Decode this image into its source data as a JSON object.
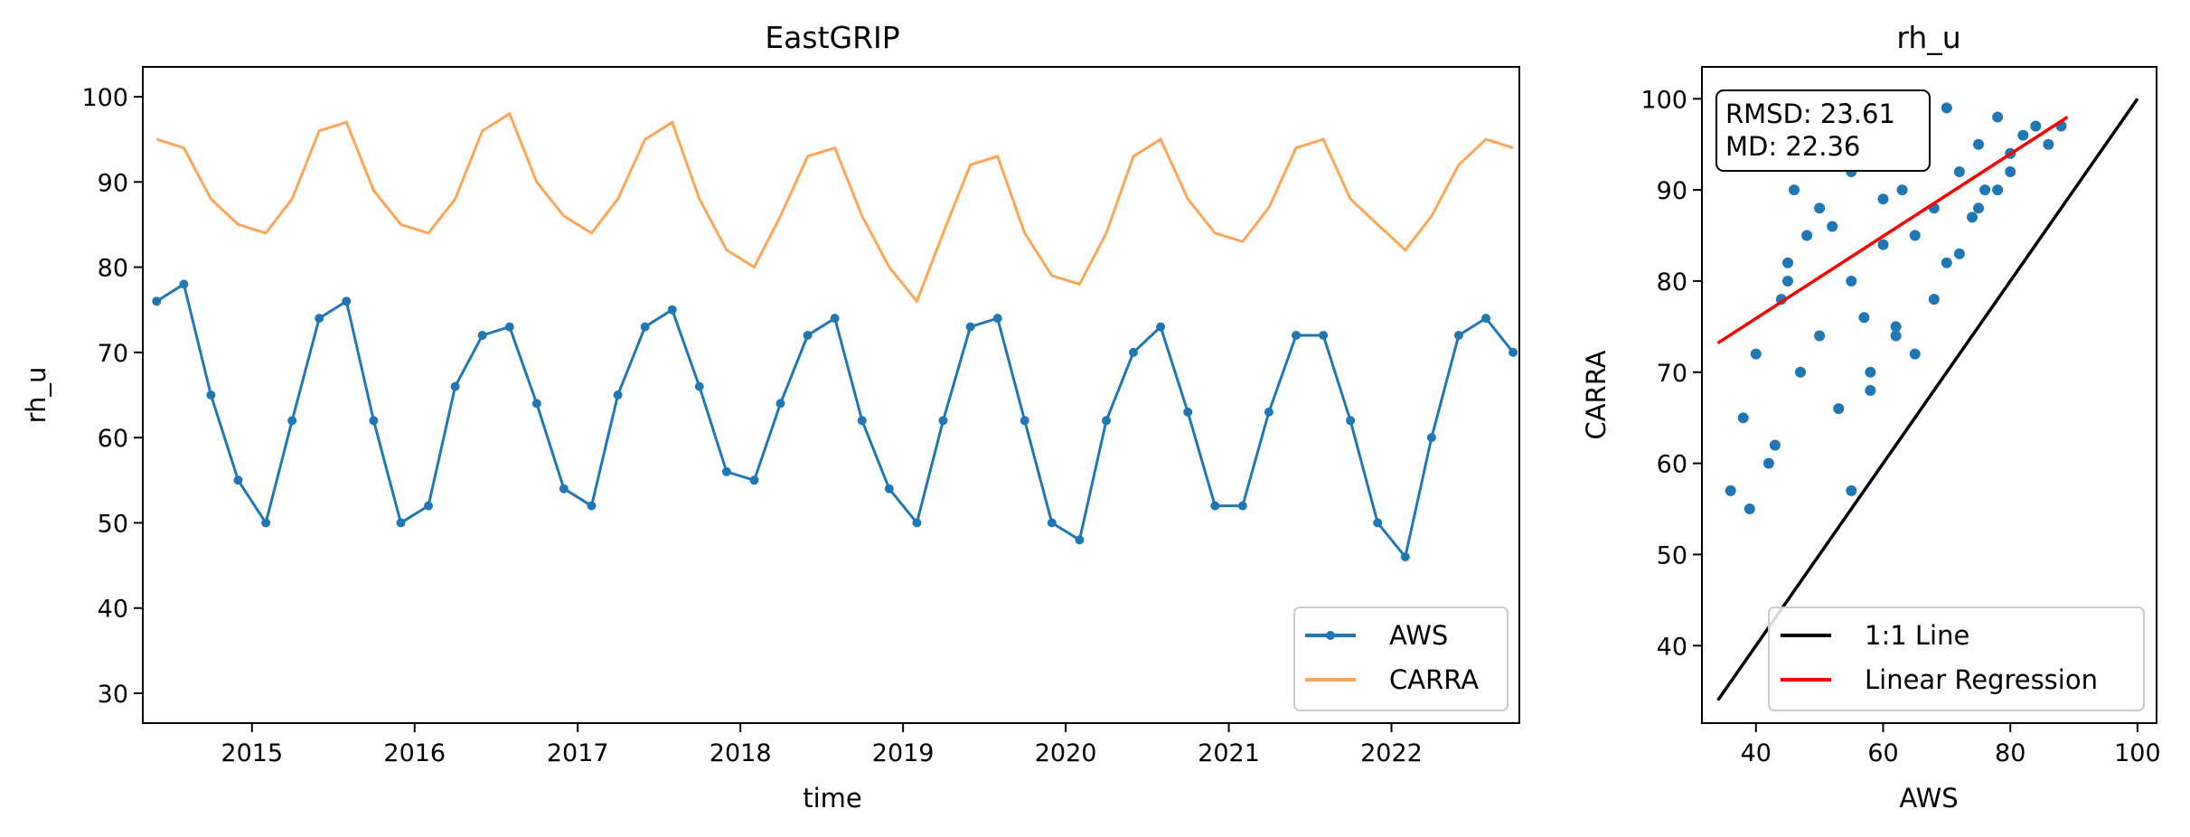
{
  "chart_data": [
    {
      "type": "line",
      "title": "EastGRIP",
      "xlabel": "time",
      "ylabel": "rh_u",
      "xlim": [
        "2014-05-01",
        "2022-10-15"
      ],
      "ylim": [
        26.5,
        103.5
      ],
      "x_ticks": [
        "2015",
        "2016",
        "2017",
        "2018",
        "2019",
        "2020",
        "2021",
        "2022"
      ],
      "y_ticks": [
        30,
        40,
        50,
        60,
        70,
        80,
        90,
        100
      ],
      "grid": false,
      "legend_position": "lower right",
      "series": [
        {
          "name": "AWS",
          "color": "#1f77b4",
          "marker": "circle",
          "x": [
            "2014-06-01",
            "2014-08-01",
            "2014-10-01",
            "2014-12-01",
            "2015-02-01",
            "2015-04-01",
            "2015-06-01",
            "2015-08-01",
            "2015-10-01",
            "2015-12-01",
            "2016-02-01",
            "2016-04-01",
            "2016-06-01",
            "2016-08-01",
            "2016-10-01",
            "2016-12-01",
            "2017-02-01",
            "2017-04-01",
            "2017-06-01",
            "2017-08-01",
            "2017-10-01",
            "2017-12-01",
            "2018-02-01",
            "2018-04-01",
            "2018-06-01",
            "2018-08-01",
            "2018-10-01",
            "2018-12-01",
            "2019-02-01",
            "2019-04-01",
            "2019-06-01",
            "2019-08-01",
            "2019-10-01",
            "2019-12-01",
            "2020-02-01",
            "2020-04-01",
            "2020-06-01",
            "2020-08-01",
            "2020-10-01",
            "2020-12-01",
            "2021-02-01",
            "2021-04-01",
            "2021-06-01",
            "2021-08-01",
            "2021-10-01",
            "2021-12-01",
            "2022-02-01",
            "2022-04-01",
            "2022-06-01",
            "2022-08-01",
            "2022-10-01"
          ],
          "values": [
            76,
            78,
            65,
            55,
            50,
            62,
            74,
            76,
            62,
            50,
            52,
            66,
            72,
            73,
            64,
            54,
            52,
            65,
            73,
            75,
            66,
            56,
            55,
            64,
            72,
            74,
            62,
            54,
            50,
            62,
            73,
            74,
            62,
            50,
            48,
            62,
            70,
            73,
            63,
            52,
            52,
            63,
            72,
            72,
            62,
            50,
            46,
            60,
            72,
            74,
            70
          ]
        },
        {
          "name": "CARRA",
          "color": "#ffa556",
          "x": [
            "2014-06-01",
            "2014-08-01",
            "2014-10-01",
            "2014-12-01",
            "2015-02-01",
            "2015-04-01",
            "2015-06-01",
            "2015-08-01",
            "2015-10-01",
            "2015-12-01",
            "2016-02-01",
            "2016-04-01",
            "2016-06-01",
            "2016-08-01",
            "2016-10-01",
            "2016-12-01",
            "2017-02-01",
            "2017-04-01",
            "2017-06-01",
            "2017-08-01",
            "2017-10-01",
            "2017-12-01",
            "2018-02-01",
            "2018-04-01",
            "2018-06-01",
            "2018-08-01",
            "2018-10-01",
            "2018-12-01",
            "2019-02-01",
            "2019-04-01",
            "2019-06-01",
            "2019-08-01",
            "2019-10-01",
            "2019-12-01",
            "2020-02-01",
            "2020-04-01",
            "2020-06-01",
            "2020-08-01",
            "2020-10-01",
            "2020-12-01",
            "2021-02-01",
            "2021-04-01",
            "2021-06-01",
            "2021-08-01",
            "2021-10-01",
            "2021-12-01",
            "2022-02-01",
            "2022-04-01",
            "2022-06-01",
            "2022-08-01",
            "2022-10-01"
          ],
          "values": [
            95,
            94,
            88,
            85,
            84,
            88,
            96,
            97,
            89,
            85,
            84,
            88,
            96,
            98,
            90,
            86,
            84,
            88,
            95,
            97,
            88,
            82,
            80,
            86,
            93,
            94,
            86,
            80,
            76,
            84,
            92,
            93,
            84,
            79,
            78,
            84,
            93,
            95,
            88,
            84,
            83,
            87,
            94,
            95,
            88,
            85,
            82,
            86,
            92,
            95,
            94
          ]
        }
      ]
    },
    {
      "type": "scatter",
      "title": "rh_u",
      "xlabel": "AWS",
      "ylabel": "CARRA",
      "xlim": [
        31.5,
        103
      ],
      "ylim": [
        31.5,
        103.5
      ],
      "x_ticks": [
        40,
        60,
        80,
        100
      ],
      "y_ticks": [
        40,
        50,
        60,
        70,
        80,
        90,
        100
      ],
      "grid": false,
      "legend_position": "lower right",
      "stats": [
        "RMSD: 23.61",
        "MD: 22.36"
      ],
      "series": [
        {
          "name": "",
          "color": "#1f77b4",
          "x": [
            36,
            38,
            39,
            40,
            42,
            43,
            44,
            45,
            46,
            47,
            48,
            50,
            50,
            52,
            53,
            55,
            55,
            57,
            58,
            60,
            60,
            62,
            63,
            65,
            66,
            68,
            70,
            70,
            72,
            74,
            75,
            76,
            78,
            80,
            82,
            84,
            86,
            88,
            55,
            58,
            62,
            65,
            68,
            72,
            75,
            78,
            80,
            45,
            52,
            60
          ],
          "y": [
            57,
            65,
            55,
            72,
            60,
            62,
            78,
            80,
            90,
            70,
            85,
            74,
            88,
            95,
            66,
            80,
            92,
            76,
            70,
            84,
            96,
            75,
            90,
            85,
            98,
            88,
            82,
            99,
            92,
            87,
            95,
            90,
            98,
            94,
            96,
            97,
            95,
            97,
            57,
            68,
            74,
            72,
            78,
            83,
            88,
            90,
            92,
            82,
            86,
            89
          ]
        }
      ],
      "lines": [
        {
          "name": "1:1 Line",
          "color": "#000000",
          "x": [
            34,
            100
          ],
          "y": [
            34,
            100
          ]
        },
        {
          "name": "Linear Regression",
          "color": "#ff0000",
          "x": [
            34,
            89
          ],
          "y": [
            73.2,
            98.0
          ]
        }
      ]
    }
  ]
}
